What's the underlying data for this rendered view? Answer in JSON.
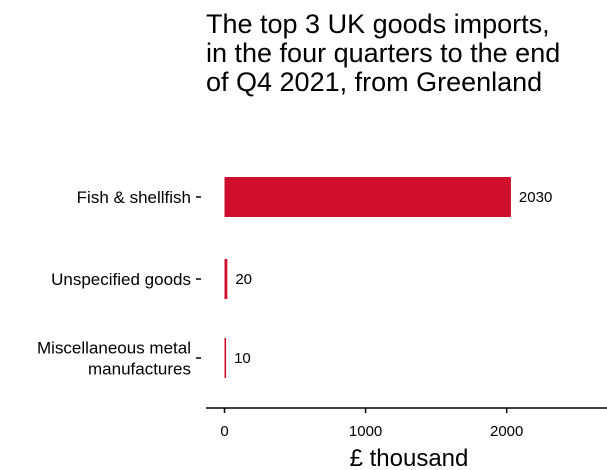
{
  "chart_data": {
    "type": "bar",
    "orientation": "horizontal",
    "title": "The top 3 UK goods imports, in the four quarters to the end of Q4 2021, from Greenland",
    "categories": [
      "Fish & shellfish",
      "Unspecified goods",
      "Miscellaneous metal manufactures"
    ],
    "values": [
      2030,
      20,
      10
    ],
    "value_labels": [
      "2030",
      "20",
      "10"
    ],
    "xlabel": "£ thousand",
    "ylabel": "",
    "x_ticks": [
      0,
      1000,
      2000
    ],
    "x_tick_labels": [
      "0",
      "1000",
      "2000"
    ],
    "xlim": [
      -130,
      2700
    ],
    "grid": false,
    "bar_color": "#cf102d"
  }
}
